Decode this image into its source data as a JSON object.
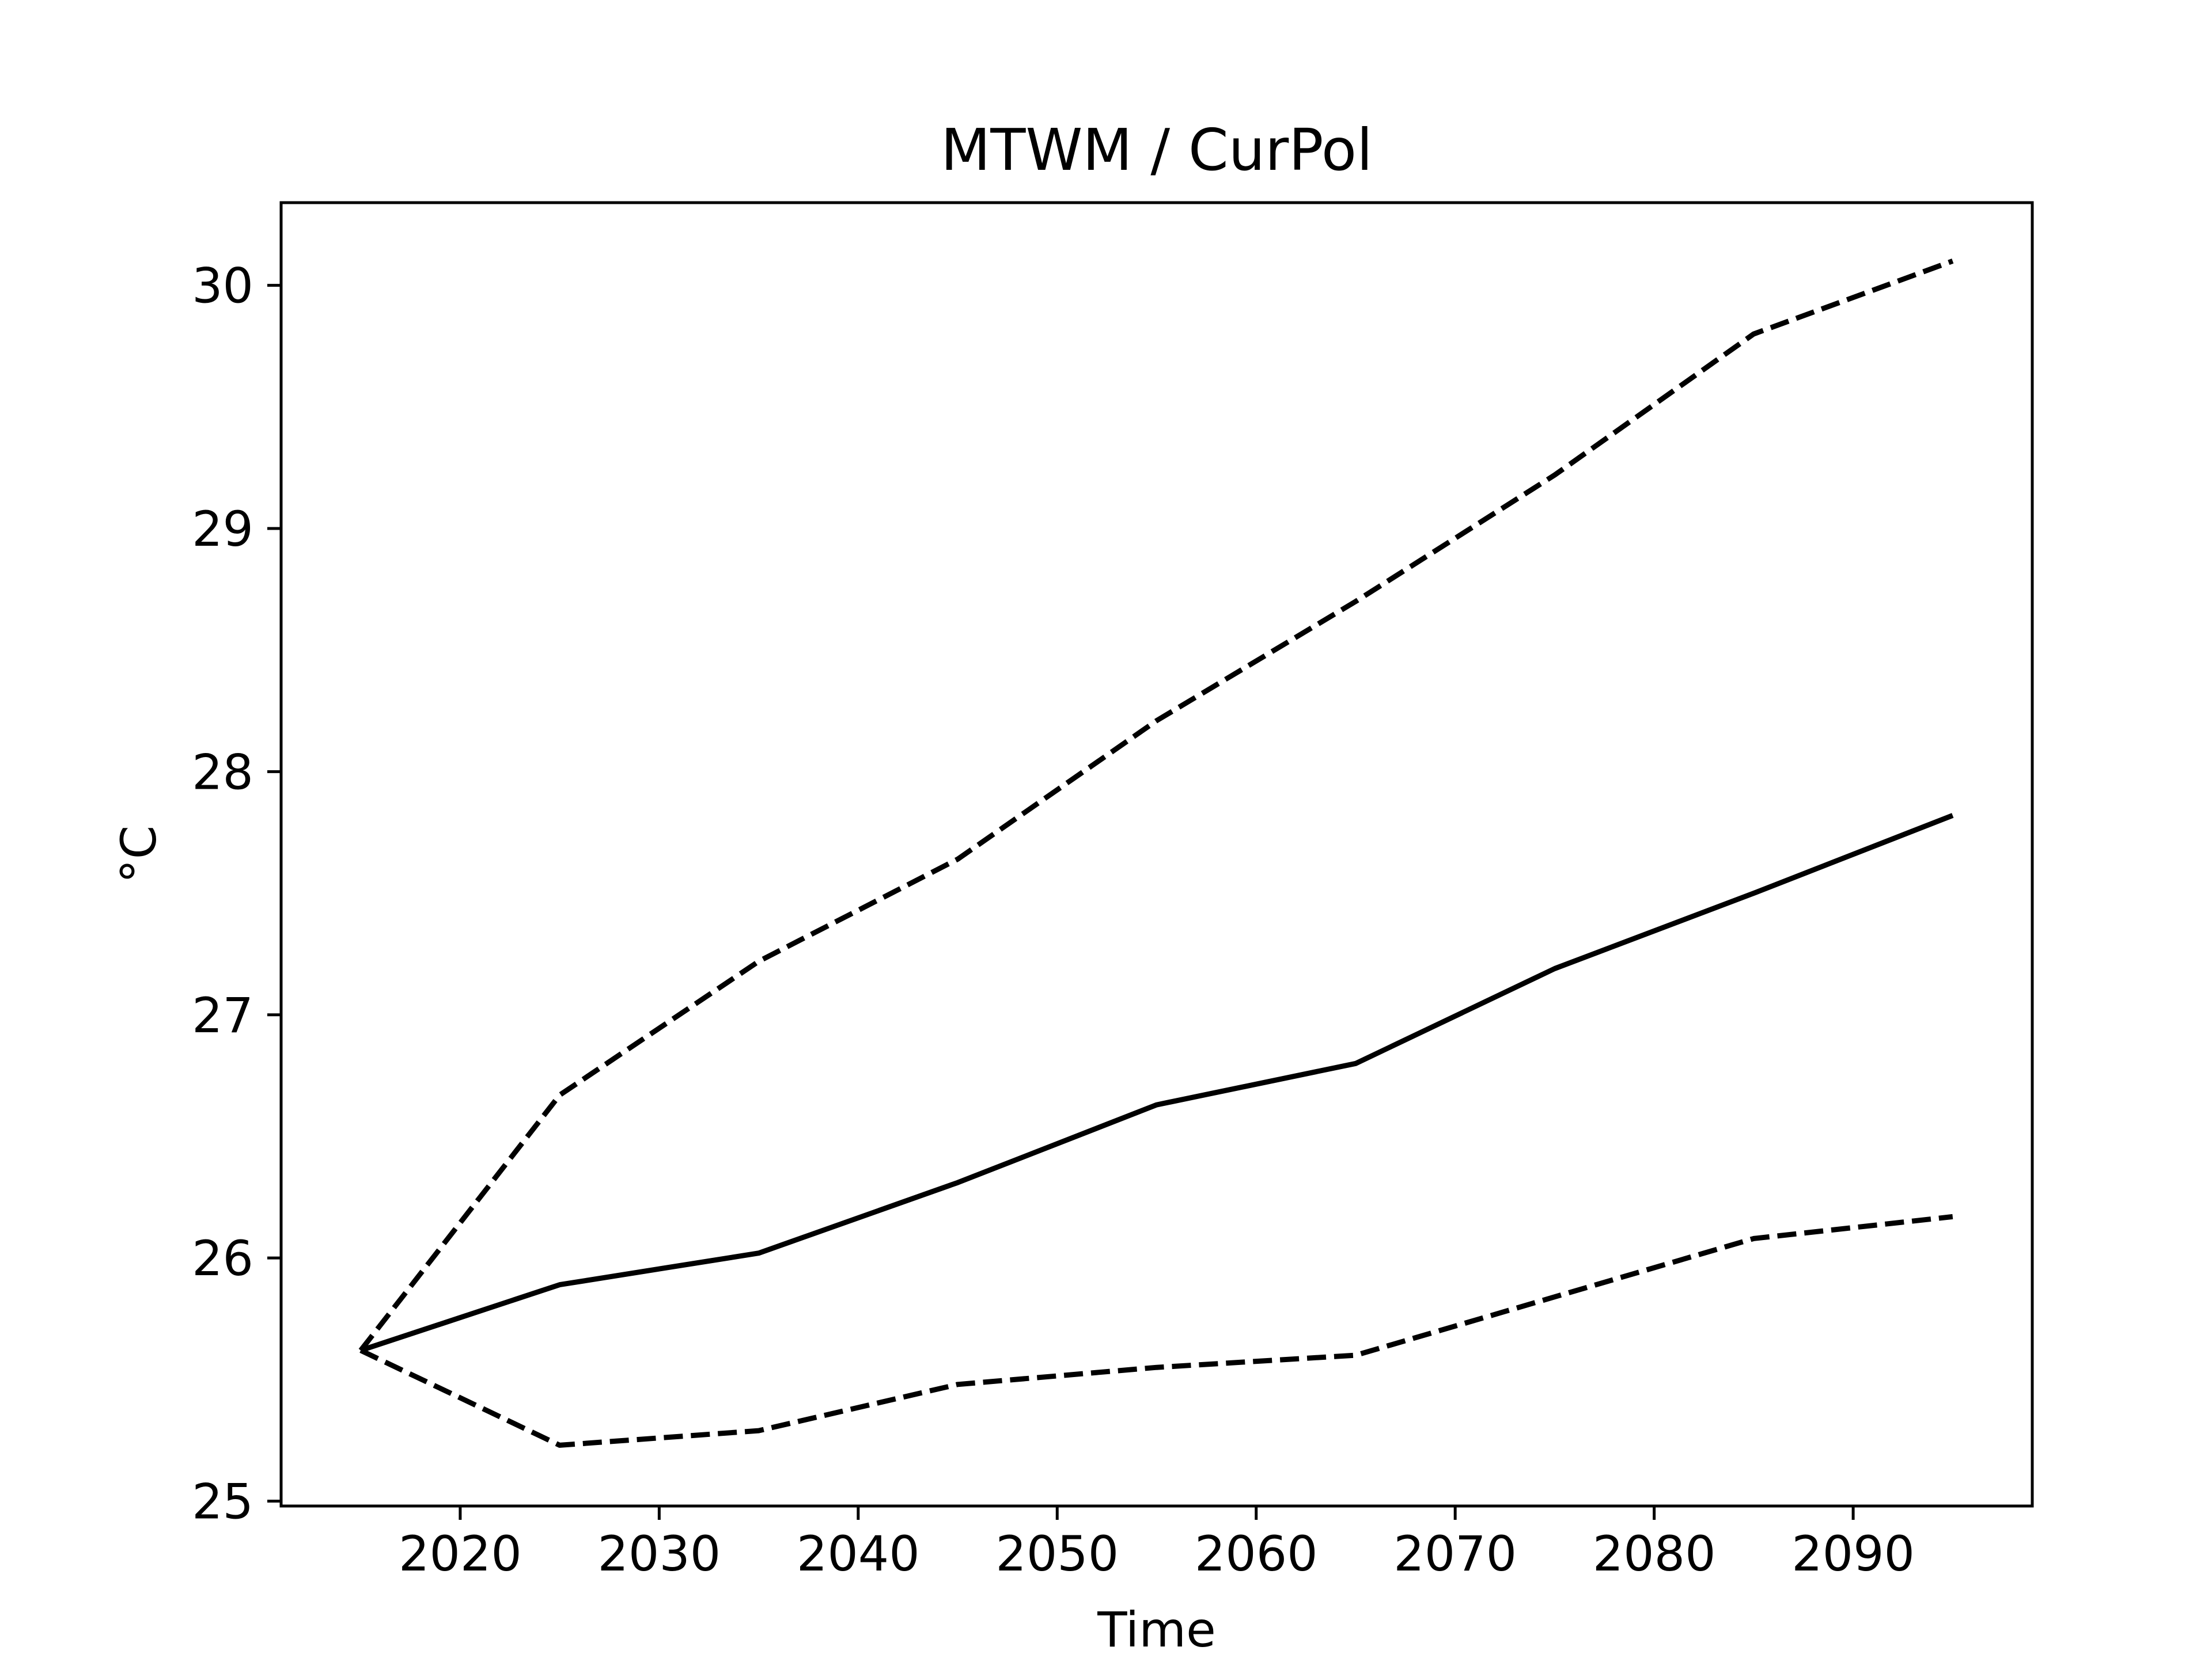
{
  "chart_data": {
    "type": "line",
    "title": "MTWM / CurPol",
    "xlabel": "Time",
    "ylabel": "°C",
    "xlim": [
      2011,
      2099
    ],
    "ylim": [
      24.98,
      30.34
    ],
    "x_ticks": [
      2020,
      2030,
      2040,
      2050,
      2060,
      2070,
      2080,
      2090
    ],
    "y_ticks": [
      25,
      26,
      27,
      28,
      29,
      30
    ],
    "grid": false,
    "legend": "none",
    "x": [
      2015,
      2025,
      2035,
      2045,
      2055,
      2065,
      2075,
      2085,
      2095
    ],
    "series": [
      {
        "style": "dashed",
        "color": "#000000",
        "values": [
          25.62,
          26.67,
          27.22,
          27.64,
          28.21,
          28.7,
          29.22,
          29.8,
          30.1
        ]
      },
      {
        "style": "solid",
        "color": "#000000",
        "values": [
          25.62,
          25.89,
          26.02,
          26.31,
          26.63,
          26.8,
          27.19,
          27.5,
          27.82
        ]
      },
      {
        "style": "dashed",
        "color": "#000000",
        "values": [
          25.62,
          25.23,
          25.29,
          25.48,
          25.55,
          25.6,
          25.84,
          26.08,
          26.17
        ]
      }
    ]
  }
}
